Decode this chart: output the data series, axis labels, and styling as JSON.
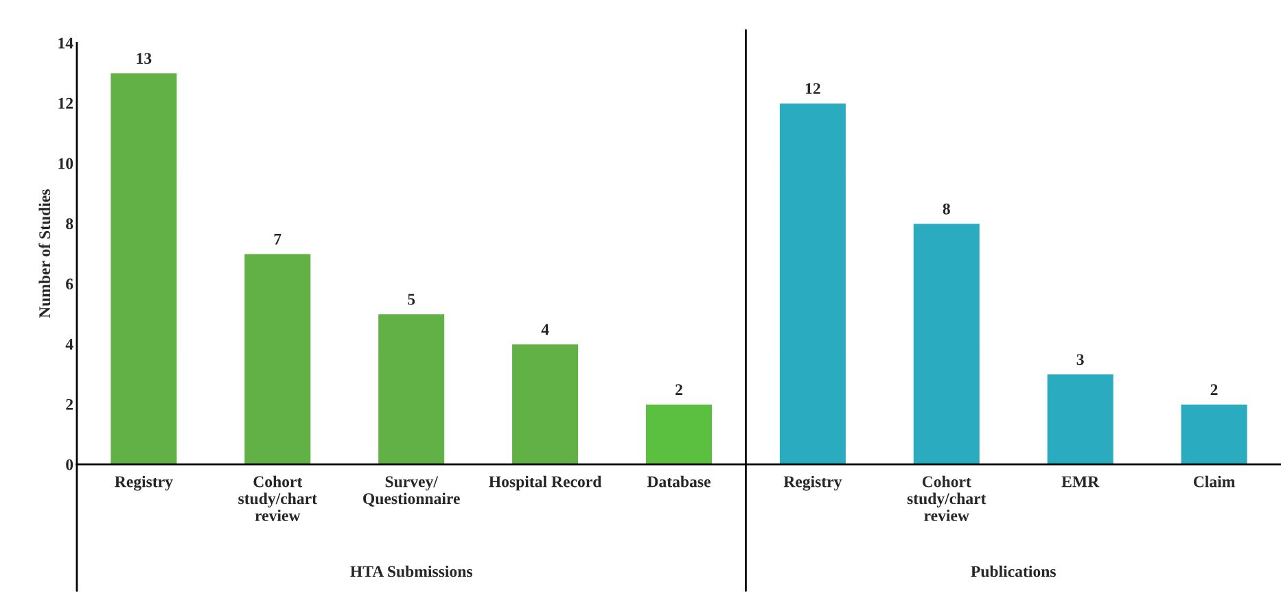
{
  "chart_data": {
    "type": "bar",
    "ylabel": "Number of Studies",
    "categories": [
      "Registry",
      "Cohort\nstudy/chart\nreview",
      "Survey/\nQuestionnaire",
      "Hospital Record",
      "Database",
      "Registry",
      "Cohort\nstudy/chart\nreview",
      "EMR",
      "Claim"
    ],
    "values": [
      13,
      7,
      5,
      4,
      2,
      12,
      8,
      3,
      2
    ],
    "colors": [
      "#62b146",
      "#62b146",
      "#62b146",
      "#62b146",
      "#5bbf3f",
      "#2babc0",
      "#2babc0",
      "#2babc0",
      "#2babc0"
    ],
    "ylim": [
      0,
      14
    ],
    "yticks": [
      0,
      2,
      4,
      6,
      8,
      10,
      12,
      14
    ],
    "data_labels": true,
    "grid": false,
    "legend": false,
    "annotations": [
      "HTA Submissions",
      "Publications"
    ]
  }
}
